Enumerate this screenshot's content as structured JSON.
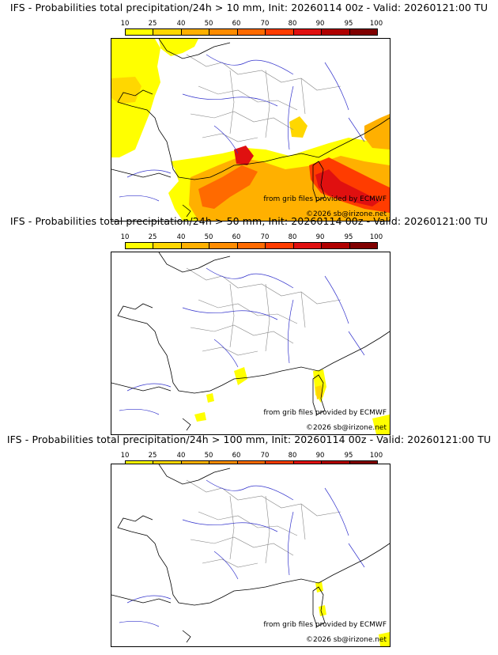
{
  "panels": [
    {
      "title": "IFS - Probabilities total precipitation/24h > 10 mm, Init: 20260114 00z - Valid: 20260121:00 TU",
      "threshold_mm": 10
    },
    {
      "title": "IFS - Probabilities total precipitation/24h > 50 mm, Init: 20260114 00z - Valid: 20260121:00 TU",
      "threshold_mm": 50
    },
    {
      "title": "IFS - Probabilities total precipitation/24h > 100 mm, Init: 20260114 00z - Valid: 20260121:00 TU",
      "threshold_mm": 100
    }
  ],
  "colorbar": {
    "labels": [
      "10",
      "25",
      "40",
      "50",
      "60",
      "70",
      "80",
      "90",
      "95",
      "100"
    ],
    "colors": [
      "#ffff00",
      "#ffd700",
      "#ffb000",
      "#ff8c00",
      "#ff6a00",
      "#ff3c00",
      "#e01010",
      "#b00000",
      "#800000"
    ]
  },
  "credits": {
    "source": "from grib files provided by ECMWF",
    "copyright": "©2026 sb@irizone.net"
  },
  "colors": {
    "coast": "#000000",
    "rivers": "#3333cc",
    "borders": "#888888"
  }
}
